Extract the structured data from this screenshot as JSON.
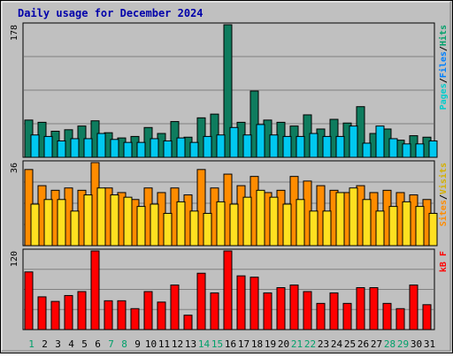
{
  "chart_data": {
    "title": "Daily usage for December 2024",
    "days": [
      "1",
      "2",
      "3",
      "4",
      "5",
      "6",
      "7",
      "8",
      "9",
      "10",
      "11",
      "12",
      "13",
      "14",
      "15",
      "16",
      "17",
      "18",
      "19",
      "20",
      "21",
      "22",
      "23",
      "24",
      "25",
      "26",
      "27",
      "28",
      "29",
      "30",
      "31"
    ],
    "weekend_days": [
      1,
      7,
      8,
      14,
      15,
      21,
      22,
      28,
      29
    ],
    "panels": [
      {
        "type": "bar",
        "ytick": "178",
        "ymax": 178,
        "series": [
          {
            "name": "Hits",
            "color": "#0e7c5e",
            "values": [
              50,
              47,
              35,
              37,
              42,
              49,
              33,
              26,
              28,
              40,
              32,
              48,
              27,
              53,
              58,
              178,
              47,
              89,
              50,
              47,
              42,
              57,
              38,
              51,
              46,
              68,
              32,
              38,
              23,
              29,
              27
            ]
          },
          {
            "name": "Files",
            "color": "#00c8f0",
            "values": [
              30,
              28,
              22,
              25,
              25,
              32,
              24,
              20,
              20,
              25,
              22,
              26,
              20,
              28,
              30,
              40,
              30,
              44,
              30,
              28,
              28,
              32,
              28,
              28,
              42,
              19,
              42,
              25,
              18,
              18,
              22
            ]
          },
          {
            "name": "Pages",
            "color": "#00c8f0",
            "values": []
          }
        ],
        "labels_right": [
          {
            "text": "Pages",
            "color": "#00cccc"
          },
          {
            "text": "/",
            "color": "#000000"
          },
          {
            "text": "Files",
            "color": "#0080ff"
          },
          {
            "text": "/",
            "color": "#000000"
          },
          {
            "text": "Hits",
            "color": "#00a06a"
          }
        ]
      },
      {
        "type": "bar",
        "ytick": "36",
        "ymax": 36,
        "series": [
          {
            "name": "Visits",
            "color": "#ffe020",
            "values": [
              18,
              20,
              20,
              15,
              22,
              25,
              22,
              21,
              17,
              18,
              14,
              19,
              15,
              14,
              19,
              18,
              21,
              24,
              21,
              18,
              20,
              15,
              15,
              23,
              25,
              20,
              15,
              17,
              19,
              17,
              14
            ]
          },
          {
            "name": "Sites",
            "color": "#ff8c00",
            "values": [
              33,
              26,
              24,
              25,
              24,
              36,
              25,
              23,
              20,
              25,
              23,
              25,
              22,
              33,
              25,
              31,
              26,
              30,
              23,
              24,
              30,
              28,
              26,
              24,
              23,
              26,
              23,
              24,
              23,
              22,
              20
            ]
          }
        ],
        "labels_right": [
          {
            "text": "Sites",
            "color": "#ff8c00"
          },
          {
            "text": "/",
            "color": "#000000"
          },
          {
            "text": "Visits",
            "color": "#d4b000"
          }
        ]
      },
      {
        "type": "bar",
        "ytick": "120",
        "ymax": 120,
        "series": [
          {
            "name": "kB F",
            "color": "#ff0000",
            "values": [
              88,
              50,
              43,
              52,
              58,
              120,
              44,
              44,
              32,
              58,
              42,
              68,
              22,
              86,
              56,
              120,
              82,
              80,
              56,
              64,
              68,
              58,
              40,
              56,
              40,
              64,
              64,
              40,
              32,
              68,
              38
            ]
          }
        ],
        "labels_right": [
          {
            "text": "kB F",
            "color": "#ff0000"
          }
        ]
      }
    ]
  }
}
